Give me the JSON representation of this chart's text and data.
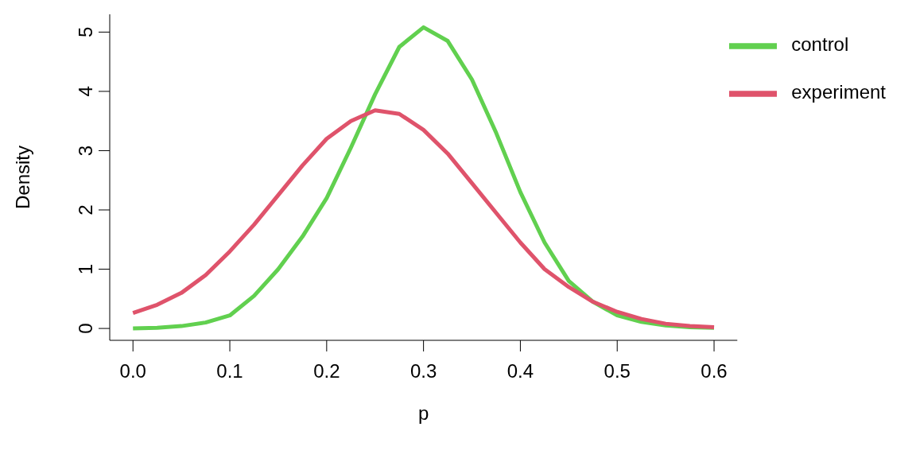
{
  "chart_data": {
    "type": "line",
    "xlabel": "p",
    "ylabel": "Density",
    "x": [
      0,
      0.025,
      0.05,
      0.075,
      0.1,
      0.125,
      0.15,
      0.175,
      0.2,
      0.225,
      0.25,
      0.275,
      0.3,
      0.325,
      0.35,
      0.375,
      0.4,
      0.425,
      0.45,
      0.475,
      0.5,
      0.525,
      0.55,
      0.575,
      0.6
    ],
    "series": [
      {
        "name": "control",
        "color": "#61d04f",
        "values": [
          0,
          0.01,
          0.04,
          0.1,
          0.22,
          0.55,
          1.0,
          1.55,
          2.2,
          3.05,
          3.95,
          4.75,
          5.08,
          4.85,
          4.2,
          3.3,
          2.3,
          1.45,
          0.8,
          0.45,
          0.22,
          0.11,
          0.05,
          0.02,
          0.01
        ]
      },
      {
        "name": "experiment",
        "color": "#df536b",
        "values": [
          0.26,
          0.4,
          0.6,
          0.9,
          1.3,
          1.75,
          2.25,
          2.75,
          3.2,
          3.5,
          3.68,
          3.62,
          3.35,
          2.95,
          2.45,
          1.95,
          1.45,
          1.0,
          0.7,
          0.45,
          0.28,
          0.16,
          0.08,
          0.04,
          0.02
        ]
      }
    ],
    "xlim": [
      -0.024,
      0.624
    ],
    "ylim": [
      -0.2,
      5.3
    ],
    "xticks": [
      {
        "value": 0,
        "label": "0.0"
      },
      0.1,
      0.2,
      0.3,
      0.4,
      0.5,
      0.6
    ],
    "yticks": [
      0,
      1,
      2,
      3,
      4,
      5
    ],
    "grid": false,
    "legend": "top right",
    "marker": "none",
    "line_style": "solid"
  }
}
